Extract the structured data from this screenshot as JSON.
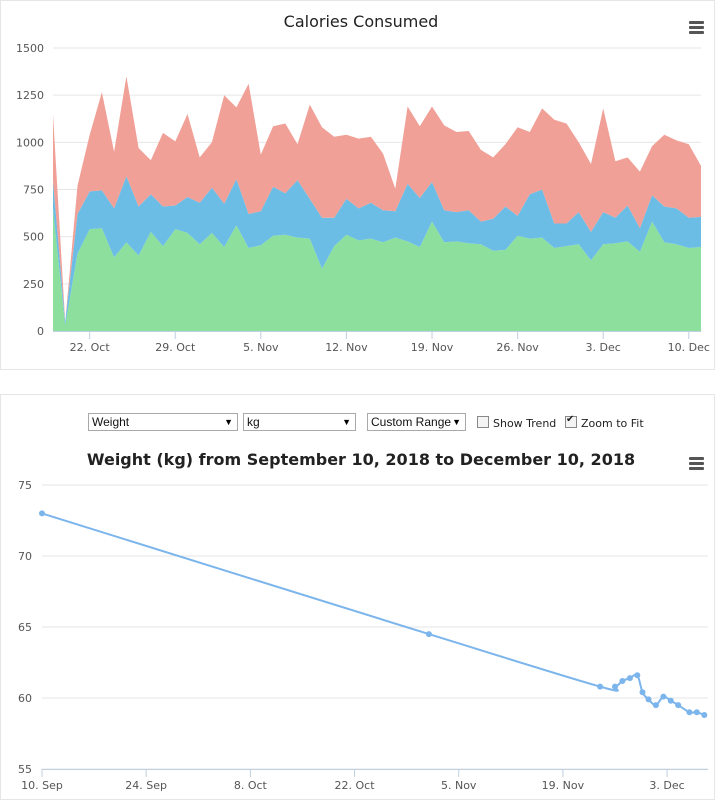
{
  "chart_data": [
    {
      "type": "area",
      "title": "Calories Consumed",
      "stacked": true,
      "grid": true,
      "legend": "none",
      "ylim": [
        0,
        1500
      ],
      "yticks": [
        0,
        250,
        500,
        750,
        1000,
        1250,
        1500
      ],
      "xticks": [
        {
          "label": "22. Oct",
          "day": 22
        },
        {
          "label": "29. Oct",
          "day": 29
        },
        {
          "label": "5. Nov",
          "day": 36
        },
        {
          "label": "12. Nov",
          "day": 43
        },
        {
          "label": "19. Nov",
          "day": 50
        },
        {
          "label": "26. Nov",
          "day": 57
        },
        {
          "label": "3. Dec",
          "day": 64
        },
        {
          "label": "10. Dec",
          "day": 71
        }
      ],
      "x": [
        19,
        20,
        21,
        22,
        23,
        24,
        25,
        26,
        27,
        28,
        29,
        30,
        31,
        32,
        33,
        34,
        35,
        36,
        37,
        38,
        39,
        40,
        41,
        42,
        43,
        44,
        45,
        46,
        47,
        48,
        49,
        50,
        51,
        52,
        53,
        54,
        55,
        56,
        57,
        58,
        59,
        60,
        61,
        62,
        63,
        64,
        65,
        66,
        67,
        68,
        69,
        70,
        71,
        72
      ],
      "series": [
        {
          "color": "#8ddf9e",
          "values": [
            648,
            30,
            410,
            540,
            545,
            390,
            470,
            400,
            525,
            450,
            540,
            520,
            460,
            520,
            445,
            560,
            440,
            455,
            505,
            510,
            495,
            490,
            330,
            450,
            510,
            480,
            490,
            470,
            495,
            475,
            445,
            580,
            470,
            475,
            465,
            460,
            425,
            430,
            505,
            490,
            495,
            440,
            450,
            460,
            375,
            460,
            465,
            475,
            420,
            580,
            470,
            460,
            440,
            445
          ]
        },
        {
          "color": "#6cbde6",
          "values": [
            150,
            20,
            210,
            200,
            200,
            260,
            350,
            260,
            200,
            210,
            125,
            190,
            220,
            240,
            230,
            245,
            180,
            180,
            260,
            220,
            305,
            210,
            270,
            150,
            190,
            170,
            190,
            170,
            140,
            305,
            260,
            210,
            170,
            155,
            175,
            120,
            170,
            230,
            105,
            235,
            255,
            130,
            120,
            170,
            150,
            170,
            135,
            190,
            125,
            140,
            190,
            190,
            160,
            160
          ]
        },
        {
          "color": "#f0a097",
          "values": [
            350,
            0,
            150,
            300,
            520,
            300,
            530,
            310,
            180,
            390,
            340,
            440,
            240,
            240,
            575,
            380,
            690,
            300,
            320,
            370,
            190,
            500,
            480,
            430,
            340,
            370,
            350,
            300,
            120,
            410,
            380,
            400,
            450,
            425,
            420,
            380,
            325,
            330,
            470,
            330,
            430,
            550,
            530,
            370,
            360,
            550,
            300,
            255,
            300,
            260,
            380,
            360,
            390,
            270
          ]
        }
      ]
    },
    {
      "type": "line",
      "title": "Weight (kg) from September 10, 2018 to December 10, 2018",
      "grid": true,
      "legend": "none",
      "ylim": [
        55,
        75
      ],
      "yticks": [
        55,
        60,
        65,
        70,
        75
      ],
      "xticks": [
        {
          "label": "10. Sep",
          "day": 0
        },
        {
          "label": "24. Sep",
          "day": 14
        },
        {
          "label": "8. Oct",
          "day": 28
        },
        {
          "label": "22. Oct",
          "day": 42
        },
        {
          "label": "5. Nov",
          "day": 56
        },
        {
          "label": "19. Nov",
          "day": 70
        },
        {
          "label": "3. Dec",
          "day": 84
        }
      ],
      "series": [
        {
          "color": "#7cb5ec",
          "points": [
            [
              0,
              73.0
            ],
            [
              52,
              64.5
            ],
            [
              75,
              60.8
            ],
            [
              77,
              60.8
            ],
            [
              78,
              61.2
            ],
            [
              79,
              61.4
            ],
            [
              80,
              61.6
            ],
            [
              80.7,
              60.4
            ],
            [
              81.5,
              59.9
            ],
            [
              82.5,
              59.5
            ],
            [
              83.5,
              60.1
            ],
            [
              84.5,
              59.8
            ],
            [
              85.5,
              59.5
            ],
            [
              87,
              59.0
            ],
            [
              88,
              59.0
            ],
            [
              89,
              58.8
            ]
          ]
        }
      ]
    }
  ],
  "controls": {
    "measure_select": "Weight",
    "unit_select": "kg",
    "range_select": "Custom Range",
    "show_trend_label": "Show Trend",
    "show_trend_checked": false,
    "zoom_to_fit_label": "Zoom to Fit",
    "zoom_to_fit_checked": true
  },
  "icons": {
    "chart_menu": "hamburger-menu-icon",
    "select_arrow": "dropdown-arrow-icon"
  }
}
